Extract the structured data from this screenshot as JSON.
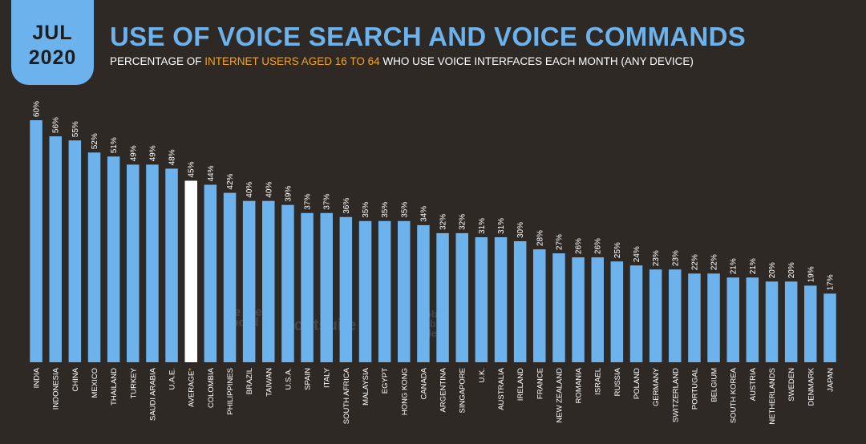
{
  "badge": {
    "month": "JUL",
    "year": "2020"
  },
  "title": "USE OF VOICE SEARCH AND VOICE COMMANDS",
  "subtitle": {
    "prefix": "PERCENTAGE OF ",
    "highlight": "INTERNET USERS AGED 16 TO 64",
    "suffix": " WHO USE VOICE INTERFACES EACH MONTH (ANY DEVICE)"
  },
  "watermarks": {
    "wearesocial": "we are social",
    "hootsuite": "Hootsuite",
    "gwi": "global web index"
  },
  "colors": {
    "bar": "#6cb2ec",
    "highlight_bar": "#ffffff",
    "accent": "#f7a21b",
    "background": "#2f2926"
  },
  "chart_data": {
    "type": "bar",
    "title": "USE OF VOICE SEARCH AND VOICE COMMANDS",
    "xlabel": "",
    "ylabel": "",
    "ylim": [
      0,
      60
    ],
    "value_suffix": "%",
    "highlight_category": "AVERAGE",
    "categories": [
      "INDIA",
      "INDONESIA",
      "CHINA",
      "MEXICO",
      "THAILAND",
      "TURKEY",
      "SAUDI ARABIA",
      "U.A.E.",
      "AVERAGE",
      "COLOMBIA",
      "PHILIPPINES",
      "BRAZIL",
      "TAIWAN",
      "U.S.A.",
      "SPAIN",
      "ITALY",
      "SOUTH AFRICA",
      "MALAYSIA",
      "EGYPT",
      "HONG KONG",
      "CANADA",
      "ARGENTINA",
      "SINGAPORE",
      "U.K.",
      "AUSTRALIA",
      "IRELAND",
      "FRANCE",
      "NEW ZEALAND",
      "ROMANIA",
      "ISRAEL",
      "RUSSIA",
      "POLAND",
      "GERMANY",
      "SWITZERLAND",
      "PORTUGAL",
      "BELGIUM",
      "SOUTH KOREA",
      "AUSTRIA",
      "NETHERLANDS",
      "SWEDEN",
      "DENMARK",
      "JAPAN"
    ],
    "values": [
      60,
      56,
      55,
      52,
      51,
      49,
      49,
      48,
      45,
      44,
      42,
      40,
      40,
      39,
      37,
      37,
      36,
      35,
      35,
      35,
      34,
      32,
      32,
      31,
      31,
      30,
      28,
      27,
      26,
      26,
      25,
      24,
      23,
      23,
      22,
      22,
      21,
      21,
      20,
      20,
      19,
      17
    ]
  }
}
